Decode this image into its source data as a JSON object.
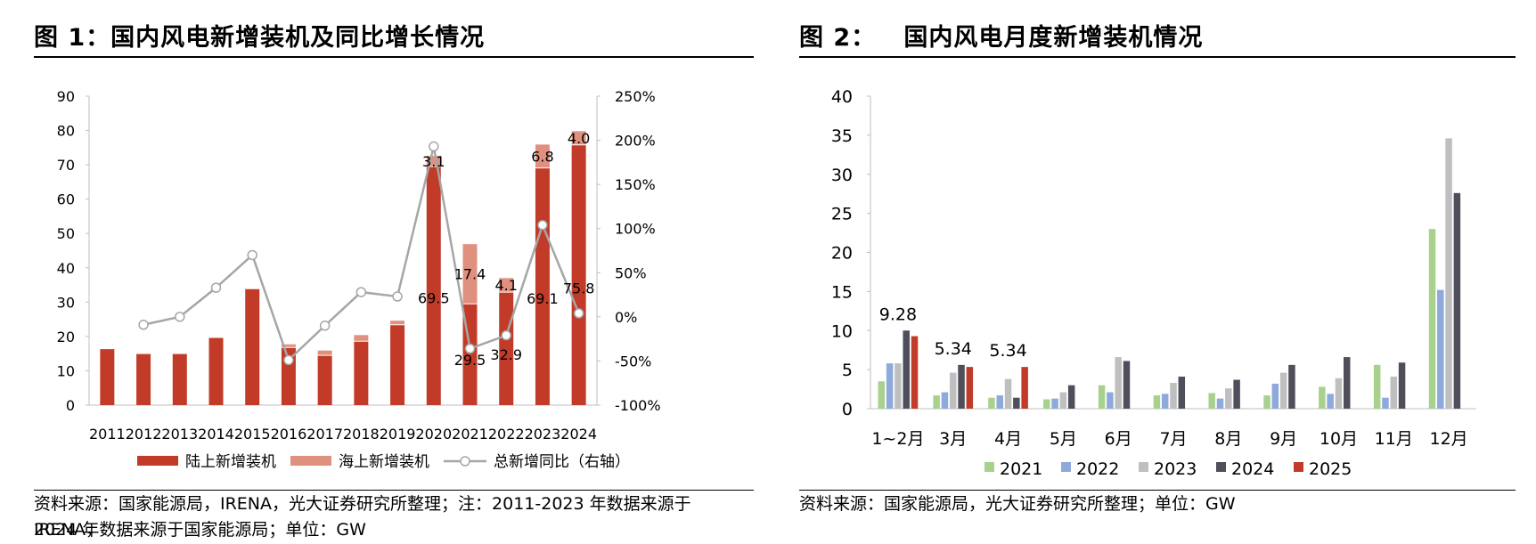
{
  "colors": {
    "onshore": "#C23B28",
    "offshore": "#E0907F",
    "yoy_line": "#A6A6A6",
    "s2021": "#A9D18E",
    "s2022": "#8EA9DB",
    "s2023": "#BFBFBF",
    "s2024": "#4F4F5C",
    "s2025": "#C23B28"
  },
  "figure1": {
    "title": "图 1：国内风电新增装机及同比增长情况",
    "source_line1": "资料来源：国家能源局，IRENA，光大证券研究所整理；注：2011-2023 年数据来源于 IRENA，",
    "source_line2": "2024 年数据来源于国家能源局；单位：GW",
    "chart_data": {
      "type": "bar",
      "stacked": true,
      "categories": [
        "2011",
        "2012",
        "2013",
        "2014",
        "2015",
        "2016",
        "2017",
        "2018",
        "2019",
        "2020",
        "2021",
        "2022",
        "2023",
        "2024"
      ],
      "series": [
        {
          "name": "陆上新增装机",
          "type": "bar",
          "axis": "left",
          "values": [
            16.3,
            15.0,
            15.0,
            19.7,
            33.9,
            16.8,
            14.5,
            18.6,
            23.4,
            69.5,
            29.5,
            32.9,
            69.1,
            75.8
          ]
        },
        {
          "name": "海上新增装机",
          "type": "bar",
          "axis": "left",
          "values": [
            0,
            0.1,
            0.1,
            0.1,
            0.1,
            0.9,
            1.4,
            1.8,
            1.2,
            3.1,
            17.4,
            4.1,
            6.8,
            4.0
          ]
        },
        {
          "name": "总新增同比（右轴）",
          "type": "line",
          "axis": "right",
          "values": [
            null,
            -9,
            0,
            33,
            70,
            -49,
            -10,
            28,
            23,
            193,
            -36,
            -21,
            104,
            4
          ]
        }
      ],
      "data_labels": [
        {
          "category": "2020",
          "series": "海上新增装机",
          "text": "3.1"
        },
        {
          "category": "2020",
          "series": "陆上新增装机",
          "text": "69.5"
        },
        {
          "category": "2021",
          "series": "海上新增装机",
          "text": "17.4"
        },
        {
          "category": "2021",
          "series": "陆上新增装机",
          "text": "29.5"
        },
        {
          "category": "2022",
          "series": "海上新增装机",
          "text": "4.1"
        },
        {
          "category": "2022",
          "series": "陆上新增装机",
          "text": "32.9"
        },
        {
          "category": "2023",
          "series": "海上新增装机",
          "text": "6.8"
        },
        {
          "category": "2023",
          "series": "陆上新增装机",
          "text": "69.1"
        },
        {
          "category": "2024",
          "series": "海上新增装机",
          "text": "4.0"
        },
        {
          "category": "2024",
          "series": "陆上新增装机",
          "text": "75.8"
        }
      ],
      "ylim": [
        0,
        90
      ],
      "yticks": [
        "0",
        "10",
        "20",
        "30",
        "40",
        "50",
        "60",
        "70",
        "80",
        "90"
      ],
      "y2lim": [
        -100,
        250
      ],
      "y2ticks": [
        "-100%",
        "-50%",
        "0%",
        "50%",
        "100%",
        "150%",
        "200%",
        "250%"
      ],
      "legend_position": "bottom",
      "grid": false
    }
  },
  "figure2": {
    "title": "图 2：   国内风电月度新增装机情况",
    "source": "资料来源：国家能源局，光大证券研究所整理；单位：GW",
    "chart_data": {
      "type": "bar",
      "categories": [
        "1~2月",
        "3月",
        "4月",
        "5月",
        "6月",
        "7月",
        "8月",
        "9月",
        "10月",
        "11月",
        "12月"
      ],
      "series": [
        {
          "name": "2021",
          "values": [
            3.5,
            1.7,
            1.4,
            1.2,
            3.0,
            1.7,
            2.0,
            1.7,
            2.8,
            5.6,
            23.0
          ]
        },
        {
          "name": "2022",
          "values": [
            5.8,
            2.1,
            1.7,
            1.3,
            2.1,
            1.9,
            1.3,
            3.2,
            1.9,
            1.4,
            15.2
          ]
        },
        {
          "name": "2023",
          "values": [
            5.8,
            4.6,
            3.8,
            2.1,
            6.6,
            3.3,
            2.6,
            4.6,
            3.9,
            4.1,
            34.6
          ]
        },
        {
          "name": "2024",
          "values": [
            10.0,
            5.6,
            1.4,
            3.0,
            6.1,
            4.1,
            3.7,
            5.6,
            6.6,
            5.9,
            27.6
          ]
        },
        {
          "name": "2025",
          "values": [
            9.28,
            5.34,
            5.34,
            null,
            null,
            null,
            null,
            null,
            null,
            null,
            null
          ]
        }
      ],
      "data_labels": [
        {
          "category": "1~2月",
          "series": "2025",
          "text": "9.28"
        },
        {
          "category": "3月",
          "series": "2025",
          "text": "5.34"
        },
        {
          "category": "4月",
          "series": "2025",
          "text": "5.34"
        }
      ],
      "ylim": [
        0,
        40
      ],
      "yticks": [
        "0",
        "5",
        "10",
        "15",
        "20",
        "25",
        "30",
        "35",
        "40"
      ],
      "legend_position": "bottom",
      "grid": false
    }
  }
}
